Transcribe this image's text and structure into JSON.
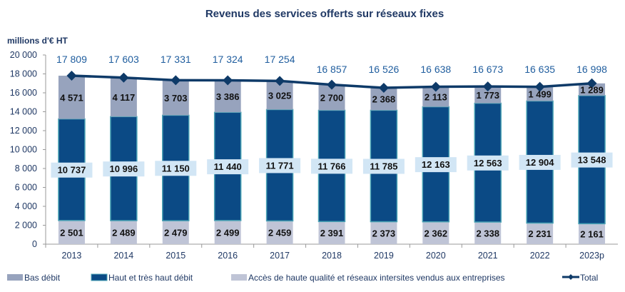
{
  "chart_data": {
    "type": "bar",
    "stacked": true,
    "title": "Revenus des services offerts sur réseaux fixes",
    "ylabel": "millions d'€ HT",
    "ylim": [
      0,
      20000
    ],
    "yticks": [
      0,
      2000,
      4000,
      6000,
      8000,
      10000,
      12000,
      14000,
      16000,
      18000,
      20000
    ],
    "ytick_labels": [
      "0",
      "2 000",
      "4 000",
      "6 000",
      "8 000",
      "10 000",
      "12 000",
      "14 000",
      "16 000",
      "18 000",
      "20 000"
    ],
    "categories": [
      "2013",
      "2014",
      "2015",
      "2016",
      "2017",
      "2018",
      "2019",
      "2020",
      "2021",
      "2022",
      "2023p"
    ],
    "series": [
      {
        "name": "Accès de haute qualité et réseaux intersites vendus aux entreprises",
        "color": "#bfc4d6",
        "values": [
          2501,
          2489,
          2479,
          2499,
          2459,
          2391,
          2373,
          2362,
          2338,
          2231,
          2161
        ],
        "labels": [
          "2 501",
          "2 489",
          "2 479",
          "2 499",
          "2 459",
          "2 391",
          "2 373",
          "2 362",
          "2 338",
          "2 231",
          "2 161"
        ]
      },
      {
        "name": "Haut et très haut débit",
        "color": "#0b4a85",
        "values": [
          10737,
          10996,
          11150,
          11440,
          11771,
          11766,
          11785,
          12163,
          12563,
          12904,
          13548
        ],
        "labels": [
          "10 737",
          "10 996",
          "11 150",
          "11 440",
          "11 771",
          "11 766",
          "11 785",
          "12 163",
          "12 563",
          "12 904",
          "13 548"
        ]
      },
      {
        "name": "Bas débit",
        "color": "#97a3bd",
        "values": [
          4571,
          4117,
          3703,
          3386,
          3025,
          2700,
          2368,
          2113,
          1773,
          1499,
          1289
        ],
        "labels": [
          "4 571",
          "4 117",
          "3 703",
          "3 386",
          "3 025",
          "2 700",
          "2 368",
          "2 113",
          "1 773",
          "1 499",
          "1 289"
        ]
      }
    ],
    "total": {
      "name": "Total",
      "type": "line",
      "color": "#0e3a68",
      "values": [
        17809,
        17603,
        17331,
        17324,
        17254,
        16857,
        16526,
        16638,
        16673,
        16635,
        16998
      ],
      "labels": [
        "17 809",
        "17 603",
        "17 331",
        "17 324",
        "17 254",
        "16 857",
        "16 526",
        "16 638",
        "16 673",
        "16 635",
        "16 998"
      ]
    },
    "legend_order": [
      "Bas débit",
      "Haut et très haut débit",
      "Accès de haute qualité et réseaux intersites vendus aux entreprises",
      "Total"
    ],
    "legend_position": "bottom",
    "grid": false
  }
}
